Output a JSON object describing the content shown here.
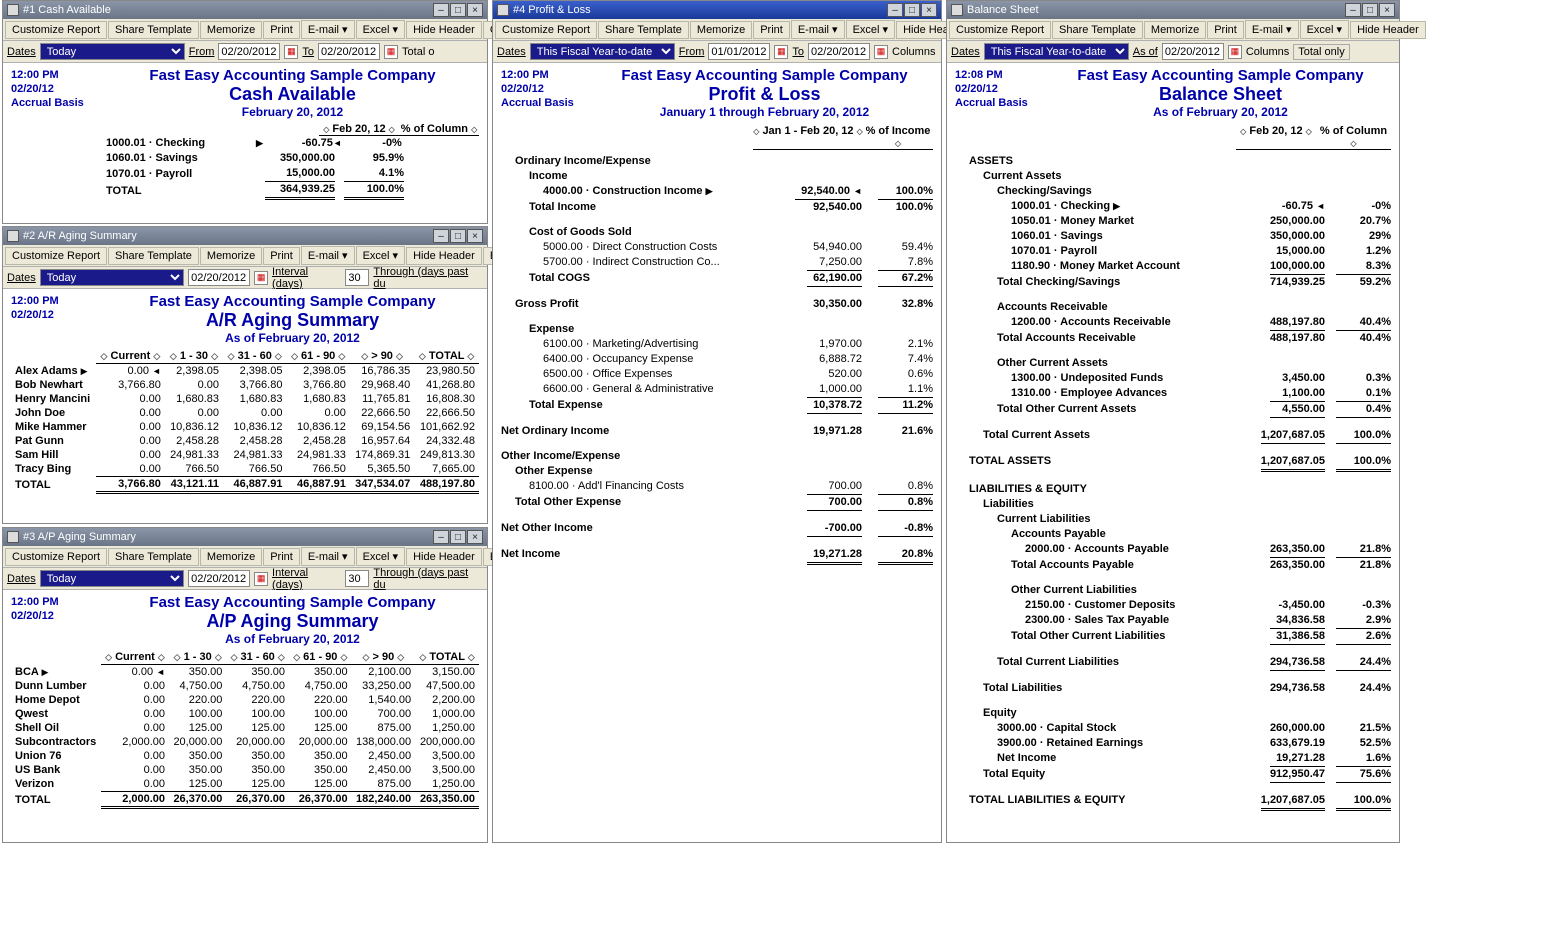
{
  "company": "Fast Easy Accounting Sample Company",
  "toolbar": {
    "customize": "Customize Report",
    "share": "Share Template",
    "memorize": "Memorize",
    "print": "Print",
    "email": "E-mail ▾",
    "excel": "Excel ▾",
    "hideHeader": "Hide Header",
    "collapse": "Col",
    "expand": "Exp",
    "columns": "Columns",
    "totalOnly": "Total only"
  },
  "labels": {
    "dates": "Dates",
    "from": "From",
    "to": "To",
    "interval": "Interval (days)",
    "through": "Through (days past du",
    "asOf": "As of"
  },
  "win1": {
    "title": "#1 Cash Available",
    "time": "12:00 PM",
    "date": "02/20/12",
    "basis": "Accrual Basis",
    "reportTitle": "Cash Available",
    "subtitle": "February 20, 2012",
    "dateSel": "Today",
    "fromDate": "02/20/2012",
    "toDate": "02/20/2012",
    "colHdr1": "Feb 20, 12",
    "colHdr2": "% of Column",
    "rows": [
      {
        "label": "1000.01 · Checking",
        "v1": "-60.75",
        "v2": "-0%",
        "arrow": true
      },
      {
        "label": "1060.01 · Savings",
        "v1": "350,000.00",
        "v2": "95.9%"
      },
      {
        "label": "1070.01 · Payroll",
        "v1": "15,000.00",
        "v2": "4.1%",
        "uline": true
      }
    ],
    "total": {
      "label": "TOTAL",
      "v1": "364,939.25",
      "v2": "100.0%"
    }
  },
  "win2": {
    "title": "#2 A/R Aging Summary",
    "time": "12:00 PM",
    "date": "02/20/12",
    "basis": "",
    "reportTitle": "A/R Aging Summary",
    "subtitle": "As of February 20, 2012",
    "dateSel": "Today",
    "asOfDate": "02/20/2012",
    "interval": "30",
    "cols": [
      "Current",
      "1 - 30",
      "31 - 60",
      "61 - 90",
      "> 90",
      "TOTAL"
    ],
    "rows": [
      {
        "name": "Alex Adams",
        "v": [
          "0.00",
          "2,398.05",
          "2,398.05",
          "2,398.05",
          "16,786.35",
          "23,980.50"
        ],
        "arrow": true
      },
      {
        "name": "Bob Newhart",
        "v": [
          "3,766.80",
          "0.00",
          "3,766.80",
          "3,766.80",
          "29,968.40",
          "41,268.80"
        ]
      },
      {
        "name": "Henry Mancini",
        "v": [
          "0.00",
          "1,680.83",
          "1,680.83",
          "1,680.83",
          "11,765.81",
          "16,808.30"
        ]
      },
      {
        "name": "John Doe",
        "v": [
          "0.00",
          "0.00",
          "0.00",
          "0.00",
          "22,666.50",
          "22,666.50"
        ]
      },
      {
        "name": "Mike Hammer",
        "v": [
          "0.00",
          "10,836.12",
          "10,836.12",
          "10,836.12",
          "69,154.56",
          "101,662.92"
        ]
      },
      {
        "name": "Pat Gunn",
        "v": [
          "0.00",
          "2,458.28",
          "2,458.28",
          "2,458.28",
          "16,957.64",
          "24,332.48"
        ]
      },
      {
        "name": "Sam Hill",
        "v": [
          "0.00",
          "24,981.33",
          "24,981.33",
          "24,981.33",
          "174,869.31",
          "249,813.30"
        ]
      },
      {
        "name": "Tracy Bing",
        "v": [
          "0.00",
          "766.50",
          "766.50",
          "766.50",
          "5,365.50",
          "7,665.00"
        ]
      }
    ],
    "total": {
      "name": "TOTAL",
      "v": [
        "3,766.80",
        "43,121.11",
        "46,887.91",
        "46,887.91",
        "347,534.07",
        "488,197.80"
      ]
    }
  },
  "win3": {
    "title": "#3 A/P Aging Summary",
    "time": "12:00 PM",
    "date": "02/20/12",
    "reportTitle": "A/P Aging Summary",
    "subtitle": "As of February 20, 2012",
    "dateSel": "Today",
    "asOfDate": "02/20/2012",
    "interval": "30",
    "cols": [
      "Current",
      "1 - 30",
      "31 - 60",
      "61 - 90",
      "> 90",
      "TOTAL"
    ],
    "rows": [
      {
        "name": "BCA",
        "v": [
          "0.00",
          "350.00",
          "350.00",
          "350.00",
          "2,100.00",
          "3,150.00"
        ],
        "arrow": true
      },
      {
        "name": "Dunn Lumber",
        "v": [
          "0.00",
          "4,750.00",
          "4,750.00",
          "4,750.00",
          "33,250.00",
          "47,500.00"
        ]
      },
      {
        "name": "Home Depot",
        "v": [
          "0.00",
          "220.00",
          "220.00",
          "220.00",
          "1,540.00",
          "2,200.00"
        ]
      },
      {
        "name": "Qwest",
        "v": [
          "0.00",
          "100.00",
          "100.00",
          "100.00",
          "700.00",
          "1,000.00"
        ]
      },
      {
        "name": "Shell Oil",
        "v": [
          "0.00",
          "125.00",
          "125.00",
          "125.00",
          "875.00",
          "1,250.00"
        ]
      },
      {
        "name": "Subcontractors",
        "v": [
          "2,000.00",
          "20,000.00",
          "20,000.00",
          "20,000.00",
          "138,000.00",
          "200,000.00"
        ]
      },
      {
        "name": "Union 76",
        "v": [
          "0.00",
          "350.00",
          "350.00",
          "350.00",
          "2,450.00",
          "3,500.00"
        ]
      },
      {
        "name": "US Bank",
        "v": [
          "0.00",
          "350.00",
          "350.00",
          "350.00",
          "2,450.00",
          "3,500.00"
        ]
      },
      {
        "name": "Verizon",
        "v": [
          "0.00",
          "125.00",
          "125.00",
          "125.00",
          "875.00",
          "1,250.00"
        ]
      }
    ],
    "total": {
      "name": "TOTAL",
      "v": [
        "2,000.00",
        "26,370.00",
        "26,370.00",
        "26,370.00",
        "182,240.00",
        "263,350.00"
      ]
    }
  },
  "win4": {
    "title": "#4 Profit & Loss",
    "time": "12:00 PM",
    "date": "02/20/12",
    "basis": "Accrual Basis",
    "reportTitle": "Profit & Loss",
    "subtitle": "January 1 through February 20, 2012",
    "dateSel": "This Fiscal Year-to-date",
    "fromDate": "01/01/2012",
    "toDate": "02/20/2012",
    "colHdr1": "Jan 1 - Feb 20, 12",
    "colHdr2": "% of Income",
    "lines": [
      {
        "lab": "Ordinary Income/Expense",
        "b": true,
        "i": 1
      },
      {
        "lab": "Income",
        "b": true,
        "i": 2
      },
      {
        "lab": "4000.00 · Construction Income",
        "b": true,
        "i": 3,
        "c1": "92,540.00",
        "c2": "100.0%",
        "arrow": true,
        "u": true
      },
      {
        "lab": "Total Income",
        "b": true,
        "i": 2,
        "c1": "92,540.00",
        "c2": "100.0%"
      },
      {
        "gap": true
      },
      {
        "lab": "Cost of Goods Sold",
        "b": true,
        "i": 2
      },
      {
        "lab": "5000.00 · Direct Construction Costs",
        "i": 3,
        "c1": "54,940.00",
        "c2": "59.4%"
      },
      {
        "lab": "5700.00 · Indirect Construction Co...",
        "i": 3,
        "c1": "7,250.00",
        "c2": "7.8%",
        "u": true
      },
      {
        "lab": "Total COGS",
        "b": true,
        "i": 2,
        "c1": "62,190.00",
        "c2": "67.2%",
        "u": true
      },
      {
        "gap": true
      },
      {
        "lab": "Gross Profit",
        "b": true,
        "i": 1,
        "c1": "30,350.00",
        "c2": "32.8%"
      },
      {
        "gap": true
      },
      {
        "lab": "Expense",
        "b": true,
        "i": 2
      },
      {
        "lab": "6100.00 · Marketing/Advertising",
        "i": 3,
        "c1": "1,970.00",
        "c2": "2.1%"
      },
      {
        "lab": "6400.00 · Occupancy Expense",
        "i": 3,
        "c1": "6,888.72",
        "c2": "7.4%"
      },
      {
        "lab": "6500.00 · Office Expenses",
        "i": 3,
        "c1": "520.00",
        "c2": "0.6%"
      },
      {
        "lab": "6600.00 · General & Administrative",
        "i": 3,
        "c1": "1,000.00",
        "c2": "1.1%",
        "u": true
      },
      {
        "lab": "Total Expense",
        "b": true,
        "i": 2,
        "c1": "10,378.72",
        "c2": "11.2%",
        "u": true
      },
      {
        "gap": true
      },
      {
        "lab": "Net Ordinary Income",
        "b": true,
        "i": 0,
        "c1": "19,971.28",
        "c2": "21.6%"
      },
      {
        "gap": true
      },
      {
        "lab": "Other Income/Expense",
        "b": true,
        "i": 0
      },
      {
        "lab": "Other Expense",
        "b": true,
        "i": 1
      },
      {
        "lab": "8100.00 · Add'l Financing Costs",
        "i": 2,
        "c1": "700.00",
        "c2": "0.8%",
        "u": true
      },
      {
        "lab": "Total Other Expense",
        "b": true,
        "i": 1,
        "c1": "700.00",
        "c2": "0.8%",
        "u": true
      },
      {
        "gap": true
      },
      {
        "lab": "Net Other Income",
        "b": true,
        "i": 0,
        "c1": "-700.00",
        "c2": "-0.8%",
        "u": true
      },
      {
        "gap": true
      },
      {
        "lab": "Net Income",
        "b": true,
        "i": 0,
        "c1": "19,271.28",
        "c2": "20.8%",
        "du": true
      }
    ]
  },
  "win5": {
    "title": "Balance Sheet",
    "time": "12:08 PM",
    "date": "02/20/12",
    "basis": "Accrual Basis",
    "reportTitle": "Balance Sheet",
    "subtitle": "As of February 20, 2012",
    "dateSel": "This Fiscal Year-to-date",
    "asOfDate": "02/20/2012",
    "colHdr1": "Feb 20, 12",
    "colHdr2": "% of Column",
    "lines": [
      {
        "lab": "ASSETS",
        "b": true,
        "i": 1
      },
      {
        "lab": "Current Assets",
        "b": true,
        "i": 2
      },
      {
        "lab": "Checking/Savings",
        "b": true,
        "i": 3
      },
      {
        "lab": "1000.01 · Checking",
        "b": true,
        "i": 4,
        "c1": "-60.75",
        "c2": "-0%",
        "arrow": true
      },
      {
        "lab": "1050.01 · Money Market",
        "b": true,
        "i": 4,
        "c1": "250,000.00",
        "c2": "20.7%"
      },
      {
        "lab": "1060.01 · Savings",
        "b": true,
        "i": 4,
        "c1": "350,000.00",
        "c2": "29%"
      },
      {
        "lab": "1070.01 · Payroll",
        "b": true,
        "i": 4,
        "c1": "15,000.00",
        "c2": "1.2%"
      },
      {
        "lab": "1180.90 · Money Market Account",
        "b": true,
        "i": 4,
        "c1": "100,000.00",
        "c2": "8.3%",
        "u": true
      },
      {
        "lab": "Total Checking/Savings",
        "b": true,
        "i": 3,
        "c1": "714,939.25",
        "c2": "59.2%"
      },
      {
        "gap": true
      },
      {
        "lab": "Accounts Receivable",
        "b": true,
        "i": 3
      },
      {
        "lab": "1200.00 · Accounts Receivable",
        "b": true,
        "i": 4,
        "c1": "488,197.80",
        "c2": "40.4%",
        "u": true
      },
      {
        "lab": "Total Accounts Receivable",
        "b": true,
        "i": 3,
        "c1": "488,197.80",
        "c2": "40.4%"
      },
      {
        "gap": true
      },
      {
        "lab": "Other Current Assets",
        "b": true,
        "i": 3
      },
      {
        "lab": "1300.00 · Undeposited Funds",
        "b": true,
        "i": 4,
        "c1": "3,450.00",
        "c2": "0.3%"
      },
      {
        "lab": "1310.00 · Employee Advances",
        "b": true,
        "i": 4,
        "c1": "1,100.00",
        "c2": "0.1%",
        "u": true
      },
      {
        "lab": "Total Other Current Assets",
        "b": true,
        "i": 3,
        "c1": "4,550.00",
        "c2": "0.4%",
        "u": true
      },
      {
        "gap": true
      },
      {
        "lab": "Total Current Assets",
        "b": true,
        "i": 2,
        "c1": "1,207,687.05",
        "c2": "100.0%",
        "u": true
      },
      {
        "gap": true
      },
      {
        "lab": "TOTAL ASSETS",
        "b": true,
        "i": 1,
        "c1": "1,207,687.05",
        "c2": "100.0%",
        "du": true
      },
      {
        "gap": true
      },
      {
        "lab": "LIABILITIES & EQUITY",
        "b": true,
        "i": 1
      },
      {
        "lab": "Liabilities",
        "b": true,
        "i": 2
      },
      {
        "lab": "Current Liabilities",
        "b": true,
        "i": 3
      },
      {
        "lab": "Accounts Payable",
        "b": true,
        "i": 4
      },
      {
        "lab": "2000.00 · Accounts Payable",
        "b": true,
        "i": 5,
        "c1": "263,350.00",
        "c2": "21.8%",
        "u": true
      },
      {
        "lab": "Total Accounts Payable",
        "b": true,
        "i": 4,
        "c1": "263,350.00",
        "c2": "21.8%"
      },
      {
        "gap": true
      },
      {
        "lab": "Other Current Liabilities",
        "b": true,
        "i": 4
      },
      {
        "lab": "2150.00 · Customer Deposits",
        "b": true,
        "i": 5,
        "c1": "-3,450.00",
        "c2": "-0.3%"
      },
      {
        "lab": "2300.00 · Sales Tax Payable",
        "b": true,
        "i": 5,
        "c1": "34,836.58",
        "c2": "2.9%",
        "u": true
      },
      {
        "lab": "Total Other Current Liabilities",
        "b": true,
        "i": 4,
        "c1": "31,386.58",
        "c2": "2.6%",
        "u": true
      },
      {
        "gap": true
      },
      {
        "lab": "Total Current Liabilities",
        "b": true,
        "i": 3,
        "c1": "294,736.58",
        "c2": "24.4%",
        "u": true
      },
      {
        "gap": true
      },
      {
        "lab": "Total Liabilities",
        "b": true,
        "i": 2,
        "c1": "294,736.58",
        "c2": "24.4%"
      },
      {
        "gap": true
      },
      {
        "lab": "Equity",
        "b": true,
        "i": 2
      },
      {
        "lab": "3000.00 · Capital Stock",
        "b": true,
        "i": 3,
        "c1": "260,000.00",
        "c2": "21.5%"
      },
      {
        "lab": "3900.00 · Retained Earnings",
        "b": true,
        "i": 3,
        "c1": "633,679.19",
        "c2": "52.5%"
      },
      {
        "lab": "Net Income",
        "b": true,
        "i": 3,
        "c1": "19,271.28",
        "c2": "1.6%",
        "u": true
      },
      {
        "lab": "Total Equity",
        "b": true,
        "i": 2,
        "c1": "912,950.47",
        "c2": "75.6%",
        "u": true
      },
      {
        "gap": true
      },
      {
        "lab": "TOTAL LIABILITIES & EQUITY",
        "b": true,
        "i": 1,
        "c1": "1,207,687.05",
        "c2": "100.0%",
        "du": true
      }
    ]
  }
}
